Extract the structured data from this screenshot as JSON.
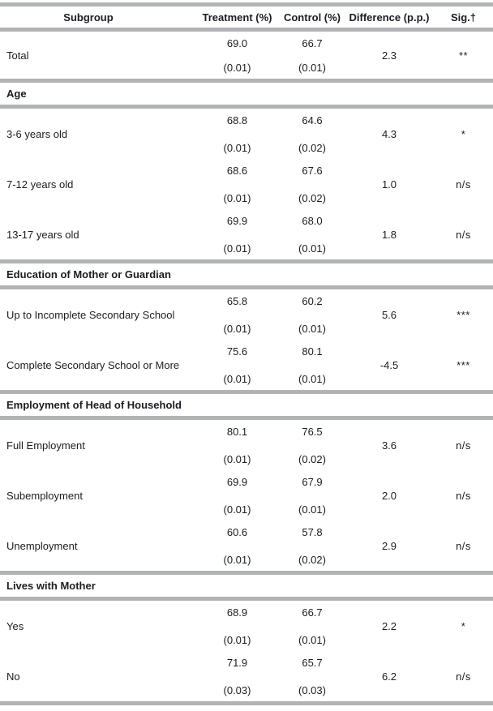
{
  "table": {
    "columns": [
      "Subgroup",
      "Treatment (%)",
      "Control (%)",
      "Difference (p.p.)",
      "Sig.†"
    ],
    "sections": [
      {
        "header": "",
        "rows": [
          {
            "label": "Total",
            "treatment": "69.0",
            "treatment_se": "(0.01)",
            "control": "66.7",
            "control_se": "(0.01)",
            "difference": "2.3",
            "sig": "**"
          }
        ]
      },
      {
        "header": "Age",
        "rows": [
          {
            "label": "3-6 years old",
            "treatment": "68.8",
            "treatment_se": "(0.01)",
            "control": "64.6",
            "control_se": "(0.02)",
            "difference": "4.3",
            "sig": "*"
          },
          {
            "label": "7-12 years old",
            "treatment": "68.6",
            "treatment_se": "(0.01)",
            "control": "67.6",
            "control_se": "(0.02)",
            "difference": "1.0",
            "sig": "n/s"
          },
          {
            "label": "13-17 years old",
            "treatment": "69.9",
            "treatment_se": "(0.01)",
            "control": "68.0",
            "control_se": "(0.01)",
            "difference": "1.8",
            "sig": "n/s"
          }
        ]
      },
      {
        "header": "Education of Mother or Guardian",
        "rows": [
          {
            "label": "Up to Incomplete Secondary School",
            "treatment": "65.8",
            "treatment_se": "(0.01)",
            "control": "60.2",
            "control_se": "(0.01)",
            "difference": "5.6",
            "sig": "***"
          },
          {
            "label": "Complete Secondary School or More",
            "treatment": "75.6",
            "treatment_se": "(0.01)",
            "control": "80.1",
            "control_se": "(0.01)",
            "difference": "-4.5",
            "sig": "***"
          }
        ]
      },
      {
        "header": "Employment of Head of Household",
        "rows": [
          {
            "label": "Full Employment",
            "treatment": "80.1",
            "treatment_se": "(0.01)",
            "control": "76.5",
            "control_se": "(0.02)",
            "difference": "3.6",
            "sig": "n/s"
          },
          {
            "label": "Subemployment",
            "treatment": "69.9",
            "treatment_se": "(0.01)",
            "control": "67.9",
            "control_se": "(0.01)",
            "difference": "2.0",
            "sig": "n/s"
          },
          {
            "label": "Unemployment",
            "treatment": "60.6",
            "treatment_se": "(0.01)",
            "control": "57.8",
            "control_se": "(0.02)",
            "difference": "2.9",
            "sig": "n/s"
          }
        ]
      },
      {
        "header": "Lives with Mother",
        "rows": [
          {
            "label": "Yes",
            "treatment": "68.9",
            "treatment_se": "(0.01)",
            "control": "66.7",
            "control_se": "(0.01)",
            "difference": "2.2",
            "sig": "*"
          },
          {
            "label": "No",
            "treatment": "71.9",
            "treatment_se": "(0.03)",
            "control": "65.7",
            "control_se": "(0.03)",
            "difference": "6.2",
            "sig": "n/s"
          }
        ]
      }
    ]
  },
  "colors": {
    "rule_gray": "#b2b3b5",
    "text": "#1c1c22"
  }
}
